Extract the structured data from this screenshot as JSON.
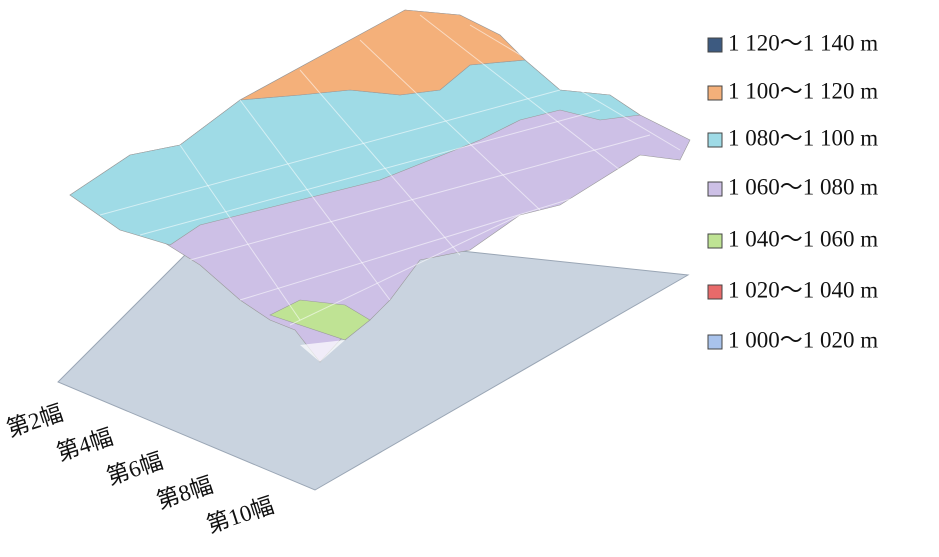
{
  "chart_data": {
    "type": "surface",
    "categories": [
      "第2幅",
      "第4幅",
      "第6幅",
      "第8幅",
      "第10幅"
    ],
    "series": [
      {
        "name": "1 120～1 140 m",
        "color": "#3d5a80"
      },
      {
        "name": "1 100～1 120 m",
        "color": "#f4b07a"
      },
      {
        "name": "1 080～1 100 m",
        "color": "#9fdbe6"
      },
      {
        "name": "1 060～1 080 m",
        "color": "#cdc0e6"
      },
      {
        "name": "1 040～1 060 m",
        "color": "#bfe394"
      },
      {
        "name": "1 020～1 040 m",
        "color": "#e86a6a"
      },
      {
        "name": "1 000～1 020 m",
        "color": "#a9c3ec"
      }
    ],
    "legend": "right"
  }
}
